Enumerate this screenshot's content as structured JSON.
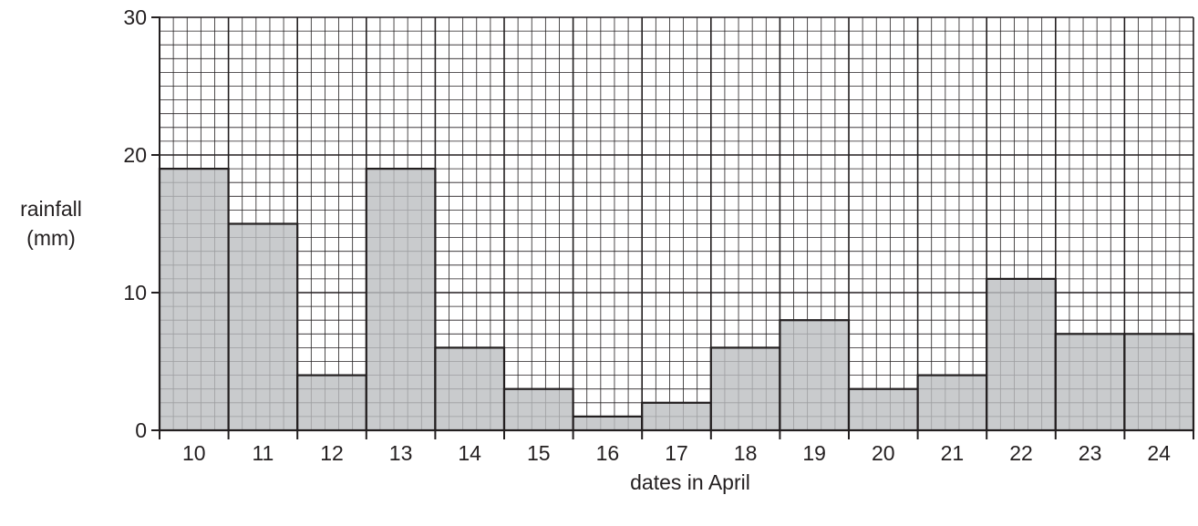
{
  "chart_data": {
    "type": "bar",
    "title": "",
    "xlabel": "dates in April",
    "ylabel": [
      "rainfall",
      "(mm)"
    ],
    "categories": [
      "10",
      "11",
      "12",
      "13",
      "14",
      "15",
      "16",
      "17",
      "18",
      "19",
      "20",
      "21",
      "22",
      "23",
      "24"
    ],
    "values": [
      19,
      15,
      4,
      19,
      6,
      3,
      1,
      2,
      6,
      8,
      3,
      4,
      11,
      7,
      7
    ],
    "ylim": [
      0,
      30
    ],
    "yticks": [
      "0",
      "10",
      "20",
      "30"
    ],
    "grid": true,
    "colors": {
      "bar_fill": "#bcbec0",
      "ink": "#231f20"
    }
  }
}
